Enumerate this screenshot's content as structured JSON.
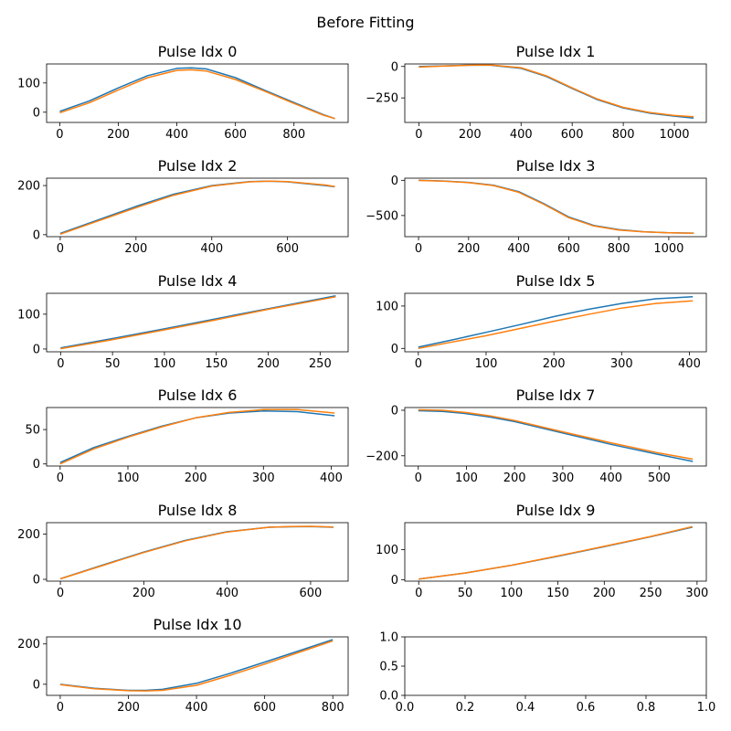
{
  "figure": {
    "suptitle": "Before Fitting"
  },
  "colors": {
    "series_a": "#1f77b4",
    "series_b": "#ff7f0e",
    "axes": "#000000",
    "background": "#ffffff"
  },
  "chart_data": [
    {
      "type": "line",
      "title": "Pulse Idx 0",
      "xlim": [
        -45,
        985
      ],
      "ylim": [
        -35,
        165
      ],
      "xticks": [
        0,
        200,
        400,
        600,
        800
      ],
      "yticks": [
        0,
        100
      ],
      "series": [
        {
          "color": "#1f77b4",
          "x": [
            0,
            100,
            200,
            300,
            400,
            450,
            500,
            600,
            700,
            800,
            900,
            940
          ],
          "y": [
            3,
            38,
            83,
            125,
            150,
            152,
            148,
            118,
            75,
            33,
            -8,
            -22
          ]
        },
        {
          "color": "#ff7f0e",
          "x": [
            0,
            100,
            200,
            300,
            400,
            450,
            500,
            600,
            700,
            800,
            900,
            940
          ],
          "y": [
            -2,
            32,
            76,
            118,
            143,
            145,
            141,
            112,
            72,
            30,
            -10,
            -22
          ]
        }
      ]
    },
    {
      "type": "line",
      "title": "Pulse Idx 1",
      "xlim": [
        -55,
        1125
      ],
      "ylim": [
        -445,
        20
      ],
      "xticks": [
        0,
        200,
        400,
        600,
        800,
        1000
      ],
      "yticks": [
        0,
        -250
      ],
      "series": [
        {
          "color": "#1f77b4",
          "x": [
            0,
            100,
            200,
            280,
            400,
            500,
            600,
            700,
            800,
            900,
            1000,
            1075
          ],
          "y": [
            0,
            5,
            10,
            10,
            -15,
            -80,
            -175,
            -265,
            -330,
            -370,
            -395,
            -410
          ]
        },
        {
          "color": "#ff7f0e",
          "x": [
            0,
            100,
            200,
            280,
            400,
            500,
            600,
            700,
            800,
            900,
            1000,
            1075
          ],
          "y": [
            -5,
            3,
            10,
            12,
            -10,
            -75,
            -170,
            -260,
            -325,
            -365,
            -390,
            -400
          ]
        }
      ]
    },
    {
      "type": "line",
      "title": "Pulse Idx 2",
      "xlim": [
        -36,
        760
      ],
      "ylim": [
        -8,
        230
      ],
      "xticks": [
        0,
        200,
        400,
        600
      ],
      "yticks": [
        0,
        200
      ],
      "series": [
        {
          "color": "#1f77b4",
          "x": [
            0,
            100,
            200,
            300,
            400,
            500,
            550,
            600,
            700,
            725
          ],
          "y": [
            5,
            60,
            115,
            165,
            200,
            216,
            218,
            215,
            200,
            195
          ]
        },
        {
          "color": "#ff7f0e",
          "x": [
            0,
            100,
            200,
            300,
            400,
            500,
            550,
            600,
            700,
            725
          ],
          "y": [
            2,
            56,
            110,
            161,
            198,
            215,
            218,
            216,
            202,
            196
          ]
        }
      ]
    },
    {
      "type": "line",
      "title": "Pulse Idx 3",
      "xlim": [
        -55,
        1150
      ],
      "ylim": [
        -800,
        30
      ],
      "xticks": [
        0,
        200,
        400,
        600,
        800,
        1000
      ],
      "yticks": [
        0,
        -500
      ],
      "series": [
        {
          "color": "#1f77b4",
          "x": [
            0,
            100,
            200,
            300,
            400,
            500,
            600,
            700,
            800,
            900,
            1000,
            1100
          ],
          "y": [
            0,
            -10,
            -30,
            -70,
            -160,
            -330,
            -520,
            -640,
            -700,
            -730,
            -745,
            -750
          ]
        },
        {
          "color": "#ff7f0e",
          "x": [
            0,
            100,
            200,
            300,
            400,
            500,
            600,
            700,
            800,
            900,
            1000,
            1100
          ],
          "y": [
            -3,
            -12,
            -33,
            -75,
            -170,
            -340,
            -530,
            -648,
            -705,
            -733,
            -746,
            -752
          ]
        }
      ]
    },
    {
      "type": "line",
      "title": "Pulse Idx 4",
      "xlim": [
        -13.5,
        277
      ],
      "ylim": [
        -8,
        160
      ],
      "xticks": [
        0,
        50,
        100,
        150,
        200,
        250
      ],
      "yticks": [
        0,
        100
      ],
      "series": [
        {
          "color": "#1f77b4",
          "x": [
            0,
            50,
            100,
            150,
            200,
            265
          ],
          "y": [
            3,
            30,
            58,
            87,
            116,
            153
          ]
        },
        {
          "color": "#ff7f0e",
          "x": [
            0,
            50,
            100,
            150,
            200,
            265
          ],
          "y": [
            1,
            27,
            55,
            84,
            114,
            150
          ]
        }
      ]
    },
    {
      "type": "line",
      "title": "Pulse Idx 5",
      "xlim": [
        -20,
        425
      ],
      "ylim": [
        -8,
        130
      ],
      "xticks": [
        0,
        100,
        200,
        300,
        400
      ],
      "yticks": [
        0,
        100
      ],
      "series": [
        {
          "color": "#1f77b4",
          "x": [
            0,
            50,
            100,
            150,
            200,
            250,
            300,
            350,
            405
          ],
          "y": [
            3,
            20,
            38,
            56,
            75,
            92,
            106,
            117,
            122
          ]
        },
        {
          "color": "#ff7f0e",
          "x": [
            0,
            50,
            100,
            150,
            200,
            250,
            300,
            350,
            405
          ],
          "y": [
            0,
            15,
            30,
            47,
            64,
            80,
            95,
            106,
            112
          ]
        }
      ]
    },
    {
      "type": "line",
      "title": "Pulse Idx 6",
      "xlim": [
        -20,
        425
      ],
      "ylim": [
        -3,
        82
      ],
      "xticks": [
        0,
        100,
        200,
        300,
        400
      ],
      "yticks": [
        0,
        50
      ],
      "series": [
        {
          "color": "#1f77b4",
          "x": [
            0,
            50,
            100,
            150,
            200,
            250,
            300,
            350,
            405
          ],
          "y": [
            2,
            24,
            40,
            55,
            67,
            74,
            77,
            76,
            70
          ]
        },
        {
          "color": "#ff7f0e",
          "x": [
            0,
            50,
            100,
            150,
            200,
            250,
            300,
            350,
            405
          ],
          "y": [
            0,
            22,
            39,
            54,
            67,
            75,
            79,
            79,
            74
          ]
        }
      ]
    },
    {
      "type": "line",
      "title": "Pulse Idx 7",
      "xlim": [
        -28,
        598
      ],
      "ylim": [
        -245,
        12
      ],
      "xticks": [
        0,
        100,
        200,
        300,
        400,
        500
      ],
      "yticks": [
        0,
        -200
      ],
      "series": [
        {
          "color": "#1f77b4",
          "x": [
            0,
            50,
            100,
            150,
            200,
            300,
            400,
            500,
            570
          ],
          "y": [
            -2,
            -5,
            -15,
            -30,
            -50,
            -100,
            -150,
            -195,
            -225
          ]
        },
        {
          "color": "#ff7f0e",
          "x": [
            0,
            50,
            100,
            150,
            200,
            300,
            400,
            500,
            570
          ],
          "y": [
            2,
            0,
            -10,
            -25,
            -45,
            -95,
            -143,
            -188,
            -215
          ]
        }
      ]
    },
    {
      "type": "line",
      "title": "Pulse Idx 8",
      "xlim": [
        -33,
        690
      ],
      "ylim": [
        -8,
        250
      ],
      "xticks": [
        0,
        200,
        400,
        600
      ],
      "yticks": [
        0,
        200
      ],
      "series": [
        {
          "color": "#1f77b4",
          "x": [
            0,
            100,
            200,
            300,
            400,
            500,
            550,
            600,
            655
          ],
          "y": [
            3,
            62,
            120,
            172,
            210,
            230,
            232,
            233,
            230
          ]
        },
        {
          "color": "#ff7f0e",
          "x": [
            0,
            100,
            200,
            300,
            400,
            500,
            550,
            600,
            655
          ],
          "y": [
            2,
            60,
            118,
            170,
            209,
            230,
            233,
            234,
            231
          ]
        }
      ]
    },
    {
      "type": "line",
      "title": "Pulse Idx 9",
      "xlim": [
        -15,
        310
      ],
      "ylim": [
        -5,
        190
      ],
      "xticks": [
        0,
        50,
        100,
        150,
        200,
        250,
        300
      ],
      "yticks": [
        0,
        100
      ],
      "series": [
        {
          "color": "#1f77b4",
          "x": [
            0,
            50,
            100,
            150,
            200,
            250,
            295
          ],
          "y": [
            2,
            22,
            48,
            78,
            110,
            143,
            175
          ]
        },
        {
          "color": "#ff7f0e",
          "x": [
            0,
            50,
            100,
            150,
            200,
            250,
            295
          ],
          "y": [
            2,
            22,
            48,
            79,
            111,
            144,
            177
          ]
        }
      ]
    },
    {
      "type": "line",
      "title": "Pulse Idx 10",
      "xlim": [
        -40,
        845
      ],
      "ylim": [
        -55,
        235
      ],
      "xticks": [
        0,
        200,
        400,
        600,
        800
      ],
      "yticks": [
        0,
        200
      ],
      "series": [
        {
          "color": "#1f77b4",
          "x": [
            0,
            100,
            200,
            250,
            300,
            400,
            500,
            600,
            700,
            800
          ],
          "y": [
            0,
            -20,
            -30,
            -30,
            -25,
            5,
            55,
            110,
            165,
            222
          ]
        },
        {
          "color": "#ff7f0e",
          "x": [
            0,
            100,
            200,
            250,
            300,
            400,
            500,
            600,
            700,
            800
          ],
          "y": [
            -2,
            -22,
            -32,
            -33,
            -30,
            -5,
            45,
            100,
            158,
            215
          ]
        }
      ]
    },
    {
      "type": "line",
      "title": "",
      "xlim": [
        0,
        1
      ],
      "ylim": [
        0,
        1
      ],
      "xticks": [
        0.0,
        0.2,
        0.4,
        0.6,
        0.8,
        1.0
      ],
      "yticks": [
        0.0,
        0.5,
        1.0
      ],
      "xtick_labels": [
        "0.0",
        "0.2",
        "0.4",
        "0.6",
        "0.8",
        "1.0"
      ],
      "ytick_labels": [
        "0.0",
        "0.5",
        "1.0"
      ],
      "series": []
    }
  ]
}
